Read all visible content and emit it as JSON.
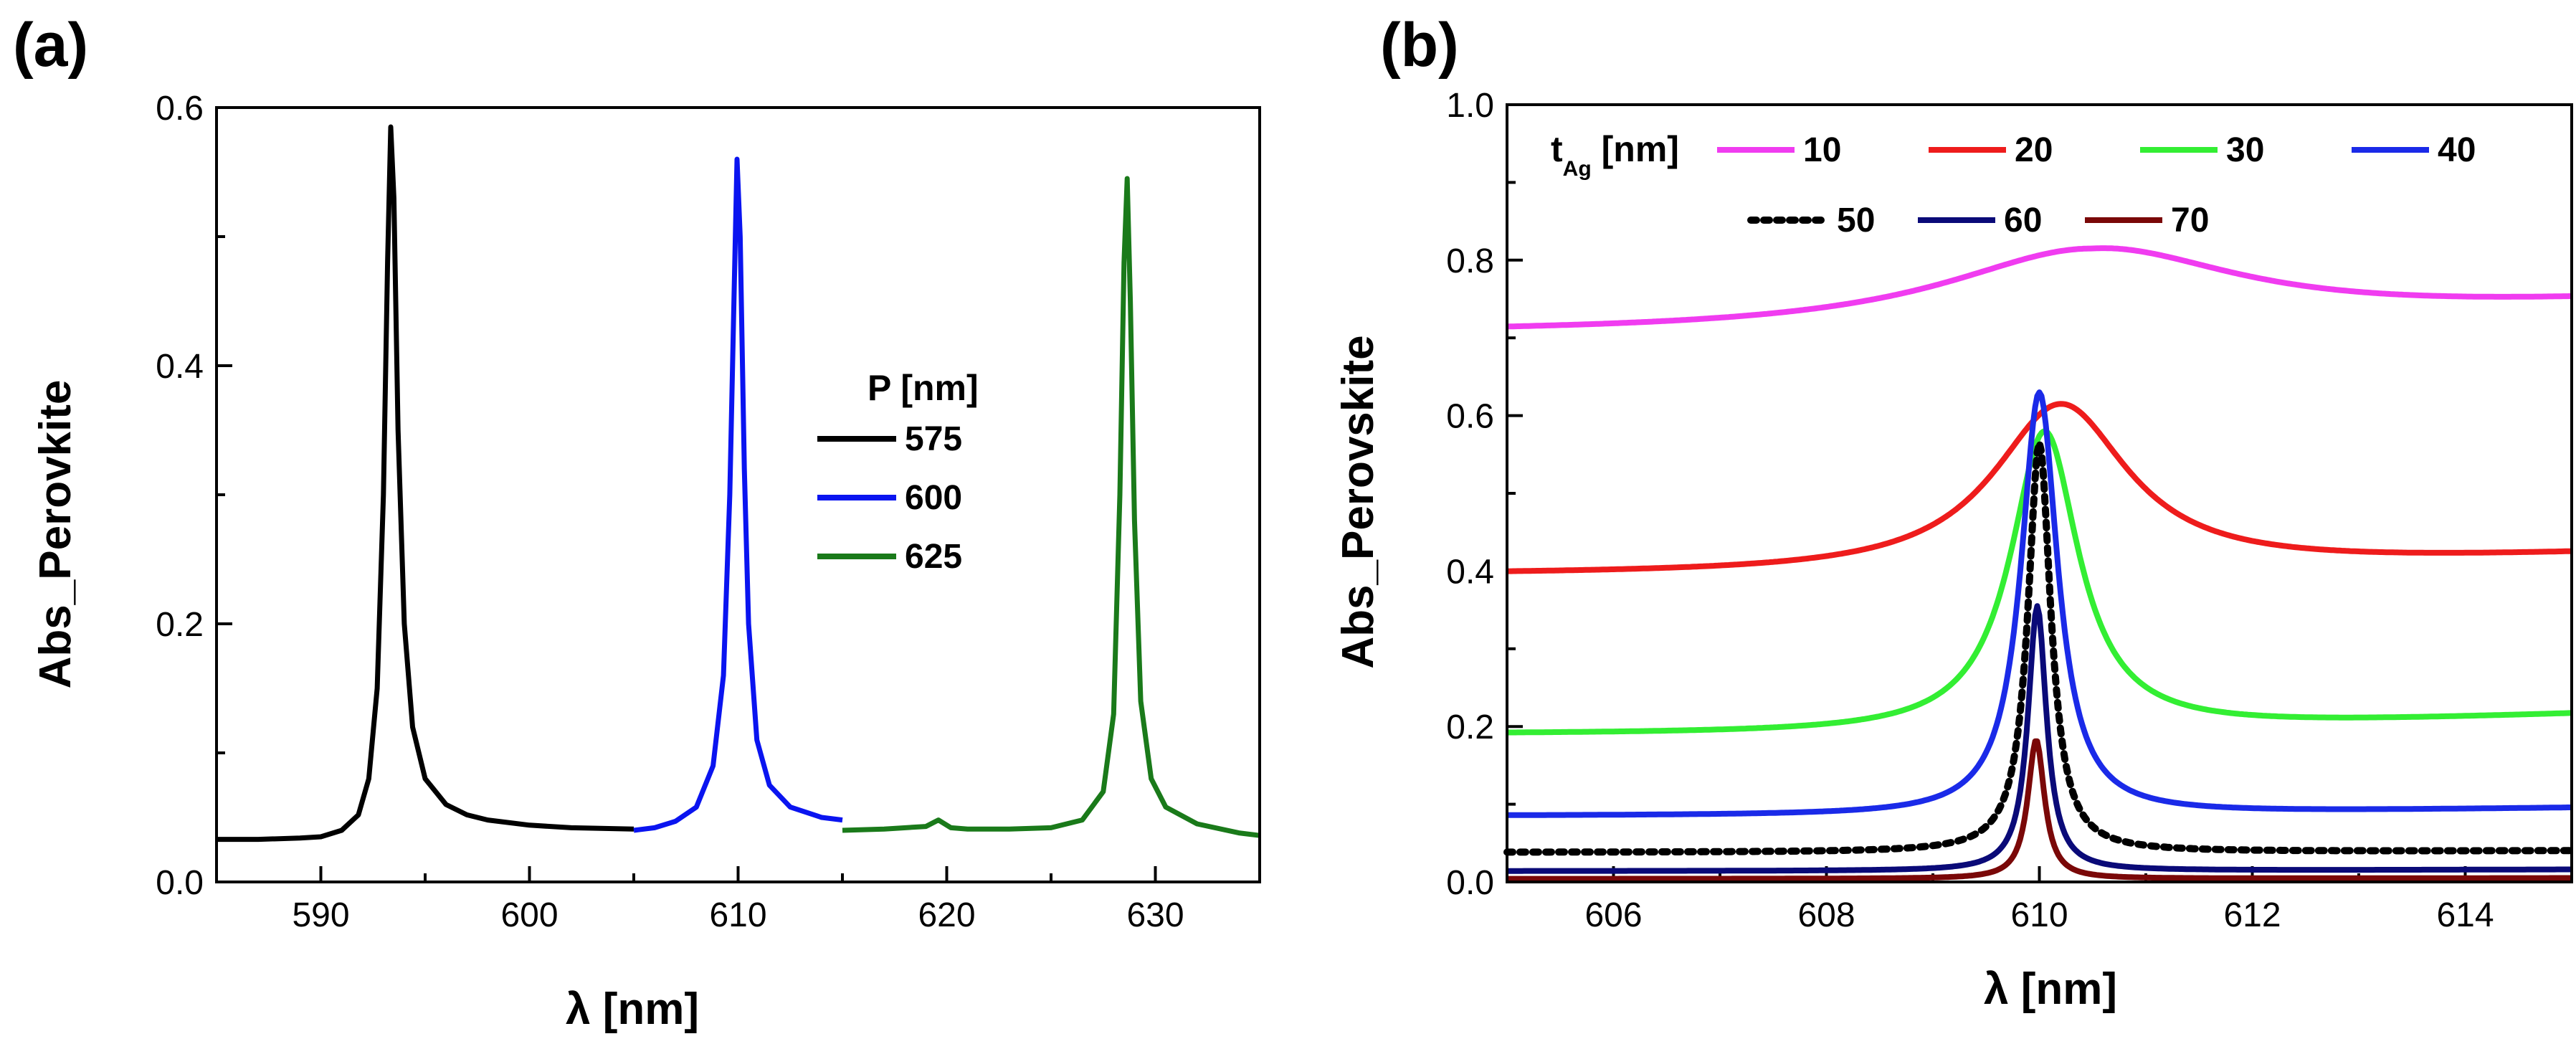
{
  "chart_data": [
    {
      "panel": "(a)",
      "type": "line",
      "xlabel": "λ [nm]",
      "ylabel": "Abs_Perovkite",
      "xlim": [
        585,
        635
      ],
      "ylim": [
        0.0,
        0.6
      ],
      "xticks": [
        "590",
        "600",
        "610",
        "620",
        "630"
      ],
      "yticks": [
        "0.0",
        "0.2",
        "0.4",
        "0.6"
      ],
      "legend_title": "P [nm]",
      "legend_position": "center-right",
      "series": [
        {
          "name": "575",
          "color": "#000000",
          "x": [
            585,
            587,
            589,
            590,
            591,
            591.8,
            592.3,
            592.7,
            593.0,
            593.2,
            593.35,
            593.5,
            593.7,
            594.0,
            594.4,
            595,
            596,
            597,
            598,
            600,
            602,
            605
          ],
          "y": [
            0.033,
            0.033,
            0.034,
            0.035,
            0.04,
            0.052,
            0.08,
            0.15,
            0.3,
            0.48,
            0.585,
            0.53,
            0.35,
            0.2,
            0.12,
            0.08,
            0.06,
            0.052,
            0.048,
            0.044,
            0.042,
            0.041
          ]
        },
        {
          "name": "600",
          "color": "#0a14f0",
          "x": [
            605,
            606,
            607,
            608,
            608.8,
            609.3,
            609.6,
            609.8,
            609.95,
            610.1,
            610.3,
            610.5,
            610.9,
            611.5,
            612.5,
            614,
            615
          ],
          "y": [
            0.04,
            0.042,
            0.047,
            0.058,
            0.09,
            0.16,
            0.3,
            0.45,
            0.56,
            0.5,
            0.32,
            0.2,
            0.11,
            0.075,
            0.058,
            0.05,
            0.048
          ]
        },
        {
          "name": "625",
          "color": "#1a7a1a",
          "x": [
            615,
            617,
            619,
            619.6,
            620.2,
            621,
            623,
            625,
            626.5,
            627.5,
            628,
            628.3,
            628.5,
            628.65,
            628.8,
            629,
            629.3,
            629.8,
            630.5,
            632,
            634,
            635
          ],
          "y": [
            0.04,
            0.041,
            0.043,
            0.048,
            0.042,
            0.041,
            0.041,
            0.042,
            0.048,
            0.07,
            0.13,
            0.3,
            0.48,
            0.545,
            0.45,
            0.28,
            0.14,
            0.08,
            0.058,
            0.045,
            0.038,
            0.036
          ]
        }
      ]
    },
    {
      "panel": "(b)",
      "type": "line",
      "xlabel": "λ [nm]",
      "ylabel": "Abs_Perovskite",
      "xlim": [
        605,
        615
      ],
      "ylim": [
        0.0,
        1.0
      ],
      "xticks": [
        "606",
        "608",
        "610",
        "612",
        "614"
      ],
      "yticks": [
        "0.0",
        "0.2",
        "0.4",
        "0.6",
        "0.8",
        "1.0"
      ],
      "legend_title": "t",
      "legend_title_sub": "Ag",
      "legend_title_unit": "[nm]",
      "legend_position": "top",
      "series": [
        {
          "name": "10",
          "color": "#f03cf0",
          "peak": 610.5,
          "peak_value": 0.815,
          "baseline": 0.705,
          "width": 3.4,
          "baseline_slope": 0.0,
          "tail_right": 0.74
        },
        {
          "name": "20",
          "color": "#ee1c1c",
          "peak": 610.2,
          "peak_value": 0.615,
          "baseline": 0.395,
          "width": 1.55,
          "tail_right": 0.42
        },
        {
          "name": "30",
          "color": "#33ee33",
          "peak": 610.05,
          "peak_value": 0.58,
          "baseline": 0.19,
          "width": 0.78,
          "tail_right": 0.215
        },
        {
          "name": "40",
          "color": "#1a2ae8",
          "peak": 610.0,
          "peak_value": 0.63,
          "baseline": 0.085,
          "width": 0.42,
          "tail_right": 0.095
        },
        {
          "name": "50",
          "color": "#000000",
          "dashed": true,
          "peak": 610.0,
          "peak_value": 0.565,
          "baseline": 0.038,
          "width": 0.26,
          "tail_right": 0.04
        },
        {
          "name": "60",
          "color": "#0a0a78",
          "peak": 609.98,
          "peak_value": 0.355,
          "baseline": 0.014,
          "width": 0.21,
          "tail_right": 0.016
        },
        {
          "name": "70",
          "color": "#7a0808",
          "peak": 609.97,
          "peak_value": 0.183,
          "baseline": 0.004,
          "width": 0.19,
          "tail_right": 0.005
        }
      ]
    }
  ]
}
